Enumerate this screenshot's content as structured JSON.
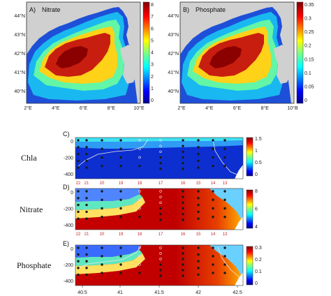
{
  "maps": [
    {
      "letter": "A)",
      "title": "Nitrate",
      "colorbar_ticks": [
        "8",
        "7",
        "6",
        "5",
        "4",
        "3",
        "2",
        "1",
        "0"
      ],
      "lat_ticks": [
        "44°N",
        "43°N",
        "42°N",
        "41°N",
        "40°N"
      ],
      "lon_ticks": [
        "2°E",
        "4°E",
        "6°E",
        "8°E",
        "10°E"
      ]
    },
    {
      "letter": "B)",
      "title": "Phosphate",
      "colorbar_ticks": [
        "0.35",
        "0.3",
        "0.25",
        "0.2",
        "0.15",
        "0.1",
        "0.05",
        "0"
      ],
      "lat_ticks": [
        "44°N",
        "43°N",
        "42°N",
        "41°N",
        "40°N"
      ],
      "lon_ticks": [
        "2°E",
        "4°E",
        "6°E",
        "8°E",
        "10°B"
      ]
    }
  ],
  "sections": [
    {
      "letter": "C)",
      "name": "Chla",
      "depth_ticks": [
        "0",
        "-200",
        "-400"
      ],
      "colorbar_ticks": [
        "1.5",
        "1",
        "0.5",
        "0"
      ],
      "show_stations": true
    },
    {
      "letter": "D)",
      "name": "Nitrate",
      "depth_ticks": [
        "0",
        "-200",
        "-400"
      ],
      "colorbar_ticks": [
        "8",
        "6",
        "4"
      ],
      "show_stations": true
    },
    {
      "letter": "E)",
      "name": "Phosphate",
      "depth_ticks": [
        "0",
        "-200",
        "-400"
      ],
      "colorbar_ticks": [
        "0.3",
        "0.2",
        "0.1",
        "0"
      ],
      "show_stations": false
    }
  ],
  "stations": [
    "22",
    "21",
    "20",
    "19",
    "18",
    "17",
    "16",
    "15",
    "14",
    "13"
  ],
  "section_x_ticks": [
    "40.5",
    "41",
    "41.5",
    "42",
    "42.5"
  ],
  "colors": {
    "land": "#d0d0d0",
    "station_label": "#c62828",
    "cast": "#1a1a1a",
    "cast_open": "#e6e6e6"
  }
}
